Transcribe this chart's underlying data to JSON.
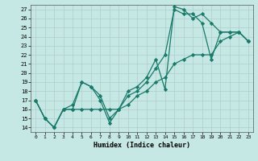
{
  "xlabel": "Humidex (Indice chaleur)",
  "xlim": [
    -0.5,
    23.5
  ],
  "ylim": [
    13.5,
    27.5
  ],
  "yticks": [
    14,
    15,
    16,
    17,
    18,
    19,
    20,
    21,
    22,
    23,
    24,
    25,
    26,
    27
  ],
  "xticks": [
    0,
    1,
    2,
    3,
    4,
    5,
    6,
    7,
    8,
    9,
    10,
    11,
    12,
    13,
    14,
    15,
    16,
    17,
    18,
    19,
    20,
    21,
    22,
    23
  ],
  "bg_color": "#c5e8e4",
  "grid_color": "#b0cccc",
  "line_color": "#1a7a6a",
  "series": [
    {
      "x": [
        0,
        1,
        2,
        3,
        4,
        5,
        6,
        7,
        8,
        9,
        10,
        11,
        12,
        13,
        14,
        15,
        16,
        17,
        18,
        19,
        20,
        21,
        22,
        23
      ],
      "y": [
        17,
        15,
        14,
        16,
        16,
        19,
        18.5,
        17,
        14.5,
        16,
        18,
        18.5,
        19.5,
        21.5,
        18.2,
        27.3,
        27,
        26,
        26.5,
        25.5,
        24.5,
        24.5,
        24.5,
        23.5
      ]
    },
    {
      "x": [
        0,
        1,
        2,
        3,
        4,
        5,
        6,
        7,
        8,
        9,
        10,
        11,
        12,
        13,
        14,
        15,
        16,
        17,
        18,
        19,
        20,
        21,
        22,
        23
      ],
      "y": [
        17,
        15,
        14,
        16,
        16.5,
        19,
        18.5,
        17.5,
        15,
        16,
        17.5,
        18,
        19,
        20.5,
        22,
        27,
        26.5,
        26.5,
        25.5,
        21.5,
        24.5,
        24.5,
        24.5,
        23.5
      ]
    },
    {
      "x": [
        0,
        1,
        2,
        3,
        4,
        5,
        6,
        7,
        8,
        9,
        10,
        11,
        12,
        13,
        14,
        15,
        16,
        17,
        18,
        19,
        20,
        21,
        22,
        23
      ],
      "y": [
        17,
        15,
        14,
        16,
        16,
        16,
        16,
        16,
        16,
        16,
        16.5,
        17.5,
        18,
        19,
        19.5,
        21,
        21.5,
        22,
        22,
        22,
        23.5,
        24,
        24.5,
        23.5
      ]
    }
  ]
}
